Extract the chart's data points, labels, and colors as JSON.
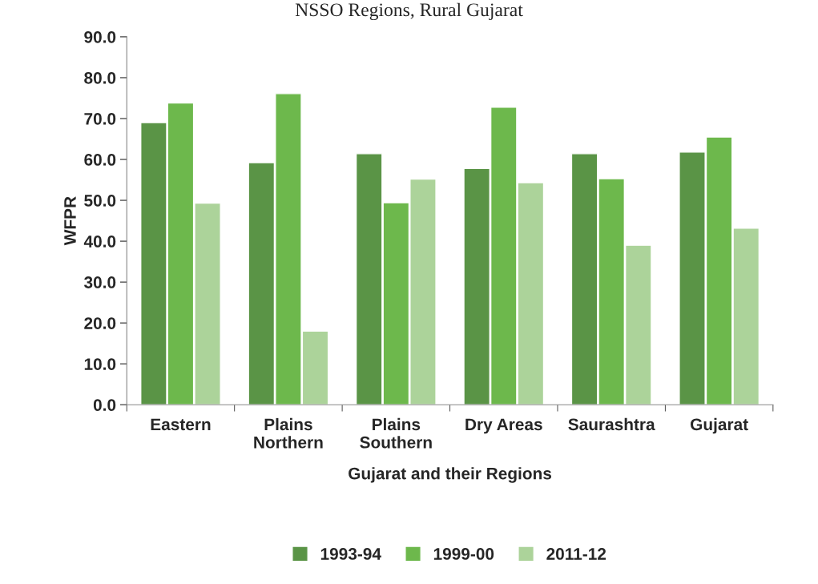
{
  "chart_data": {
    "type": "bar",
    "title": "NSSO Regions, Rural Gujarat",
    "xlabel": "Gujarat and their Regions",
    "ylabel": "WFPR",
    "categories": [
      "Eastern",
      "Plains\nNorthern",
      "Plains\nSouthern",
      "Dry Areas",
      "Saurashtra",
      "Gujarat"
    ],
    "series": [
      {
        "name": "1993-94",
        "color": "#5a9446",
        "values": [
          69.0,
          59.2,
          61.4,
          57.8,
          61.4,
          61.8
        ]
      },
      {
        "name": "1999-00",
        "color": "#6db84c",
        "values": [
          73.8,
          76.1,
          49.4,
          72.8,
          55.3,
          65.5
        ]
      },
      {
        "name": "2011-12",
        "color": "#acd39a",
        "values": [
          49.3,
          18.0,
          55.2,
          54.3,
          39.0,
          43.2
        ]
      }
    ],
    "ylim": [
      0,
      90
    ],
    "yticks": [
      {
        "value": 0,
        "label": "0.0"
      },
      {
        "value": 10,
        "label": "10.0"
      },
      {
        "value": 20,
        "label": "20.0"
      },
      {
        "value": 30,
        "label": "30.0"
      },
      {
        "value": 40,
        "label": "40.0"
      },
      {
        "value": 50,
        "label": "50.0"
      },
      {
        "value": 60,
        "label": "60.0"
      },
      {
        "value": 70,
        "label": "70.0"
      },
      {
        "value": 80,
        "label": "80.0"
      },
      {
        "value": 90,
        "label": "90.0"
      }
    ],
    "grid": false,
    "legend": "bottom"
  }
}
